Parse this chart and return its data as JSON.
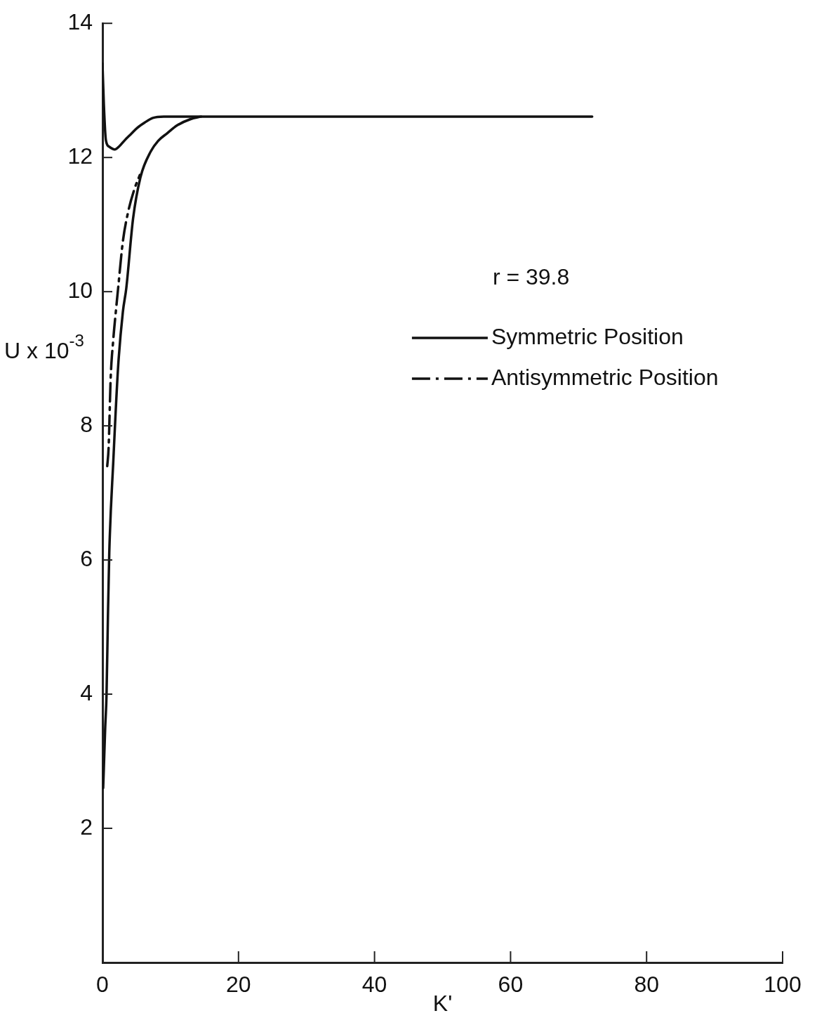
{
  "chart_data": {
    "type": "line",
    "xlabel": "K'",
    "ylabel": "U x 10$^{-3}$",
    "annotations": [
      "r = 39.8"
    ],
    "xlim": [
      0,
      100
    ],
    "xticks": [
      0,
      20,
      40,
      60,
      80,
      100
    ],
    "ylim": [
      0,
      14
    ],
    "yticks": [
      2,
      4,
      6,
      8,
      10,
      12,
      14
    ],
    "grid": false,
    "legend": "right",
    "marker": "none",
    "series": [
      {
        "name": "Symmetric Position",
        "color": "#111111",
        "line_style": "solid",
        "x": [
          0,
          0.2,
          0.5,
          1,
          1.8,
          2.5,
          3.3,
          4.2,
          5.1,
          6.2,
          7.4,
          9,
          12,
          20,
          40,
          60,
          72
        ],
        "values": [
          13.4,
          12.8,
          12.26,
          12.16,
          12.12,
          12.17,
          12.26,
          12.35,
          12.44,
          12.52,
          12.59,
          12.61,
          12.61,
          12.61,
          12.61,
          12.61,
          12.61
        ]
      },
      {
        "name": "Antisymmetric Position",
        "color": "#111111",
        "line_style": "dashed",
        "x": [
          0.7,
          0.9,
          1.2,
          1.6,
          2,
          2.3,
          3,
          3.8,
          4.7,
          5.5
        ],
        "values": [
          7.4,
          7.67,
          8.7,
          9.3,
          9.74,
          10.05,
          10.75,
          11.2,
          11.53,
          11.74
        ]
      },
      {
        "color": "#111111",
        "line_style": "solid",
        "x": [
          0.1,
          0.2,
          0.4,
          0.6,
          0.8,
          1,
          1.6,
          2.3,
          3,
          3.5,
          4.5,
          5.6,
          7.1,
          8.2,
          9.5,
          11,
          12.9,
          14.5
        ],
        "values": [
          2.6,
          2.89,
          3.5,
          4.0,
          5.15,
          6.11,
          7.49,
          8.88,
          9.7,
          10.05,
          11.09,
          11.71,
          12.09,
          12.25,
          12.36,
          12.48,
          12.57,
          12.61
        ]
      }
    ]
  }
}
